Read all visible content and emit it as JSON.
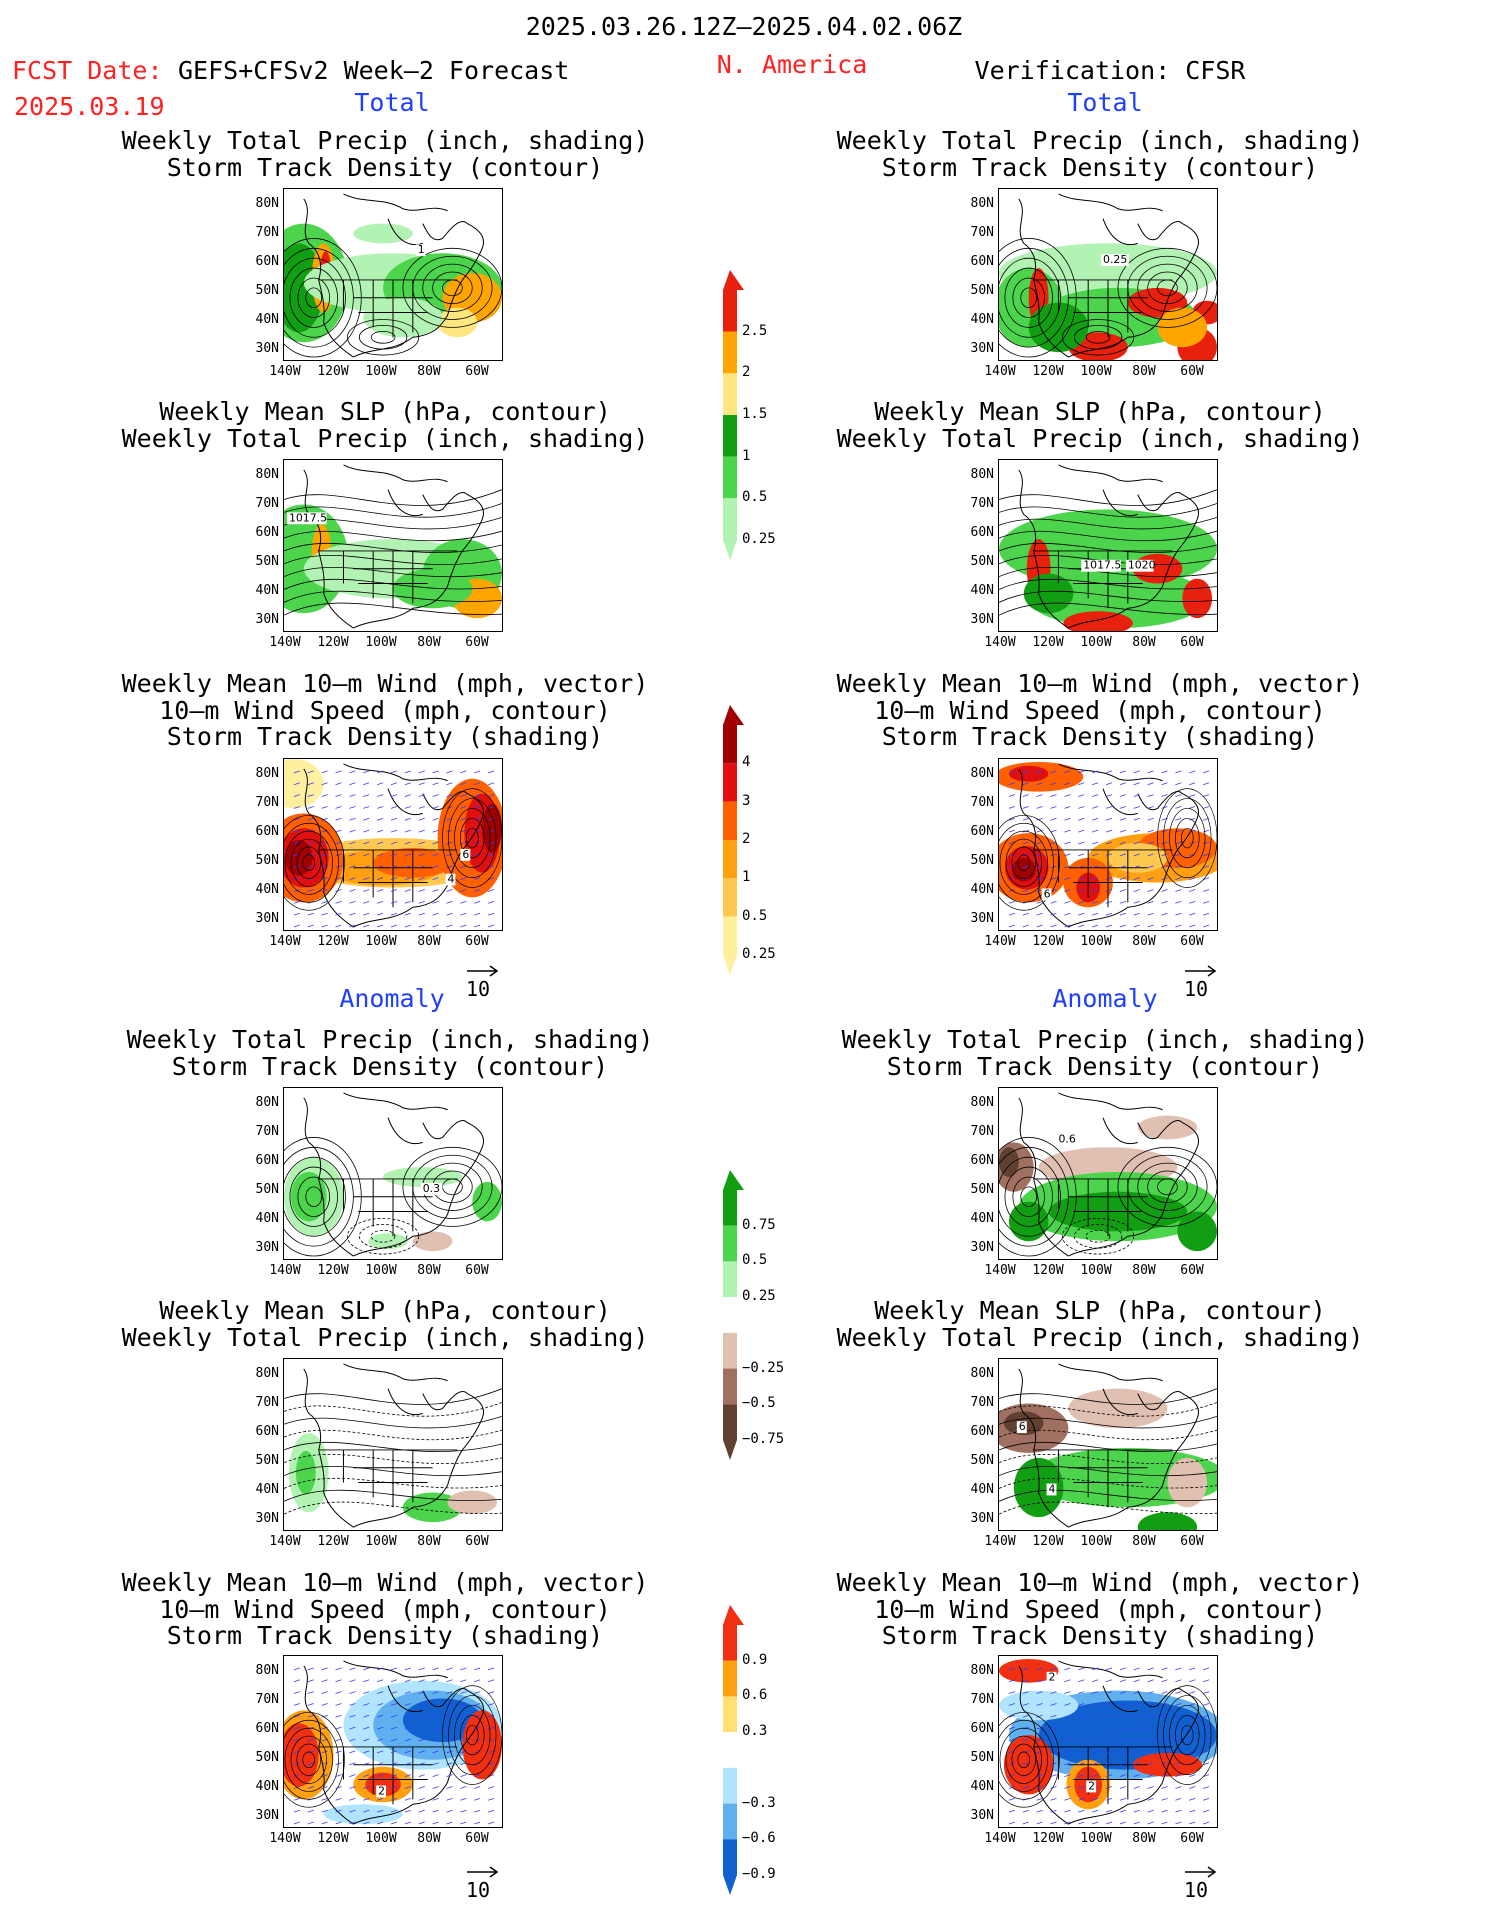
{
  "header": {
    "date_range": "2025.03.26.12Z–2025.04.02.06Z",
    "fcst_date_label": "FCST Date:",
    "fcst_date": "2025.03.19",
    "model": "GEFS+CFSv2 Week–2 Forecast",
    "region": "N. America",
    "verification": "Verification: CFSR"
  },
  "section_labels": {
    "total": "Total",
    "anomaly": "Anomaly"
  },
  "panel_titles": {
    "precip_storm": [
      "Weekly Total Precip (inch, shading)",
      "Storm Track Density (contour)"
    ],
    "slp_precip": [
      "Weekly Mean SLP (hPa, contour)",
      "Weekly Total Precip (inch, shading)"
    ],
    "wind_storm": [
      "Weekly Mean 10–m Wind (mph, vector)",
      "10–m Wind Speed (mph, contour)",
      "Storm Track Density (shading)"
    ]
  },
  "axes": {
    "lat_ticks": [
      "80N",
      "70N",
      "60N",
      "50N",
      "40N",
      "30N"
    ],
    "lon_ticks": [
      "140W",
      "120W",
      "100W",
      "80W",
      "60W"
    ]
  },
  "vector_ref": "10",
  "colorbars": {
    "precip_total": {
      "labels": [
        "2.5",
        "2",
        "1.5",
        "1",
        "0.5",
        "0.25"
      ],
      "colors": [
        "#e8200e",
        "#ffa500",
        "#ffe680",
        "#129e12",
        "#4cd44c",
        "#b2f2b2"
      ]
    },
    "storm_total": {
      "labels": [
        "4",
        "3",
        "2",
        "1",
        "0.5",
        "0.25"
      ],
      "colors": [
        "#a00000",
        "#e01010",
        "#ff6000",
        "#ffa010",
        "#ffc850",
        "#fff0a0"
      ]
    },
    "precip_anom": {
      "labels": [
        "0.75",
        "0.5",
        "0.25",
        "−0.25",
        "−0.5",
        "−0.75"
      ],
      "colors": [
        "#129e12",
        "#4cd44c",
        "#b2f2b2",
        "#ffffff",
        "#e0c0b0",
        "#a07060",
        "#604030"
      ]
    },
    "storm_anom": {
      "labels": [
        "0.9",
        "0.6",
        "0.3",
        "−0.3",
        "−0.6",
        "−0.9"
      ],
      "colors": [
        "#f03010",
        "#ffa010",
        "#ffe070",
        "#ffffff",
        "#b0e4ff",
        "#60b0f0",
        "#1060d0"
      ]
    }
  },
  "map_labels": {
    "p1": "1",
    "p2": "0.25",
    "p3": "1017.5",
    "p4a": "1017.5",
    "p4b": "1020",
    "p5": "6",
    "p5b": "4",
    "p6": "6",
    "p7": "0.3",
    "p8": "0.6",
    "p10": "6",
    "p10b": "4",
    "p11": "2",
    "p12": "2",
    "p12b": "2"
  }
}
